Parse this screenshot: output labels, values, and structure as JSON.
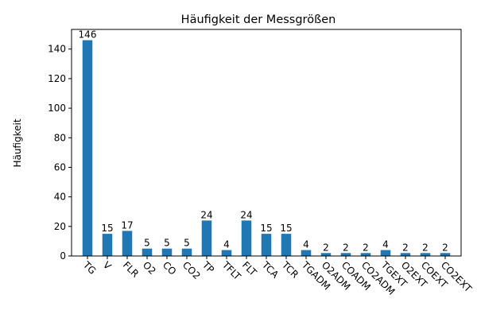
{
  "chart_data": {
    "type": "bar",
    "title": "Häufigkeit der Messgrößen",
    "xlabel": "",
    "ylabel": "Häufigkeit",
    "categories": [
      "TG",
      "V",
      "FLR",
      "O2",
      "CO",
      "CO2",
      "TP",
      "TFLT",
      "FLT",
      "TCA",
      "TCR",
      "TGADM",
      "O2ADM",
      "COADM",
      "CO2ADM",
      "TGEXT",
      "O2EXT",
      "COEXT",
      "CO2EXT"
    ],
    "values": [
      146,
      15,
      17,
      5,
      5,
      5,
      24,
      4,
      24,
      15,
      15,
      4,
      2,
      2,
      2,
      4,
      2,
      2,
      2
    ],
    "data_labels_shown": true,
    "ylim": [
      0,
      153.3
    ],
    "yticks": [
      0,
      20,
      40,
      60,
      80,
      100,
      120,
      140
    ],
    "xtick_rotation": -45,
    "grid": false,
    "legend": "none",
    "colors": {
      "bar": "#1f77b4",
      "axis": "#000000",
      "text": "#000000"
    }
  }
}
